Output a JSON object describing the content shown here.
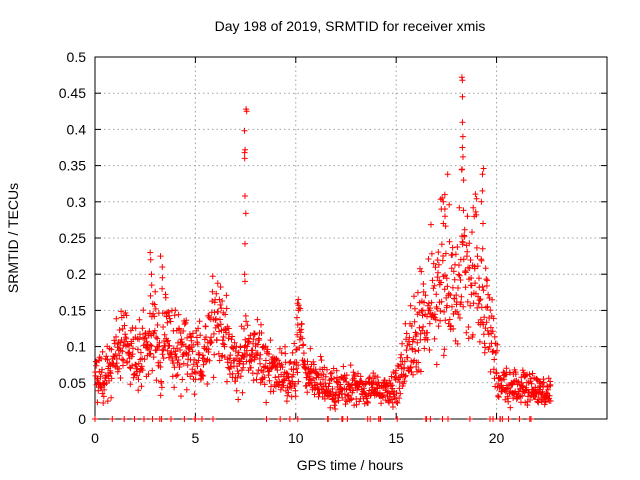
{
  "chart_data": {
    "type": "scatter",
    "title": "Day 198 of 2019, SRMTID for receiver xmis",
    "xlabel": "GPS time / hours",
    "ylabel": "SRMTID / TECUs",
    "xlim": [
      0,
      25.5
    ],
    "ylim": [
      0,
      0.5
    ],
    "grid": true,
    "marker": "+",
    "marker_color": "#ff0000",
    "x_ticks": [
      {
        "value": 0,
        "label": "0"
      },
      {
        "value": 5,
        "label": "5"
      },
      {
        "value": 10,
        "label": "10"
      },
      {
        "value": 15,
        "label": "15"
      },
      {
        "value": 20,
        "label": "20"
      }
    ],
    "y_ticks": [
      {
        "value": 0,
        "label": "0"
      },
      {
        "value": 0.05,
        "label": "0.05"
      },
      {
        "value": 0.1,
        "label": "0.1"
      },
      {
        "value": 0.15,
        "label": "0.15"
      },
      {
        "value": 0.2,
        "label": "0.2"
      },
      {
        "value": 0.25,
        "label": "0.25"
      },
      {
        "value": 0.3,
        "label": "0.3"
      },
      {
        "value": 0.35,
        "label": "0.35"
      },
      {
        "value": 0.4,
        "label": "0.4"
      },
      {
        "value": 0.45,
        "label": "0.45"
      },
      {
        "value": 0.5,
        "label": "0.5"
      }
    ],
    "series": [
      {
        "name": "SRMTID",
        "x_range": [
          0,
          22.7
        ],
        "x": [
          0.0,
          0.5,
          1.0,
          1.5,
          2.0,
          2.5,
          2.8,
          3.0,
          3.3,
          3.5,
          4.0,
          4.5,
          5.0,
          5.5,
          6.0,
          6.3,
          6.8,
          7.2,
          7.5,
          7.8,
          8.0,
          8.5,
          9.0,
          9.5,
          10.0,
          10.2,
          10.5,
          11.0,
          11.5,
          12.0,
          12.5,
          13.0,
          13.5,
          14.0,
          14.5,
          14.8,
          15.0,
          15.3,
          15.5,
          16.0,
          16.5,
          17.0,
          17.5,
          17.8,
          18.0,
          18.3,
          18.6,
          18.8,
          19.0,
          19.3,
          19.6,
          19.8,
          20.0,
          20.3,
          20.6,
          21.0,
          21.5,
          22.0,
          22.7
        ],
        "y": [
          0.055,
          0.06,
          0.085,
          0.1,
          0.085,
          0.09,
          0.12,
          0.11,
          0.085,
          0.13,
          0.09,
          0.085,
          0.075,
          0.085,
          0.125,
          0.13,
          0.075,
          0.065,
          0.1,
          0.08,
          0.085,
          0.07,
          0.065,
          0.06,
          0.06,
          0.12,
          0.06,
          0.055,
          0.045,
          0.04,
          0.042,
          0.045,
          0.04,
          0.04,
          0.04,
          0.035,
          0.05,
          0.06,
          0.08,
          0.11,
          0.14,
          0.19,
          0.2,
          0.18,
          0.16,
          0.23,
          0.17,
          0.2,
          0.19,
          0.16,
          0.13,
          0.09,
          0.06,
          0.05,
          0.04,
          0.042,
          0.04,
          0.038,
          0.035
        ],
        "spikes": [
          {
            "x": 2.8,
            "y": [
              0.23,
              0.22,
              0.2,
              0.185,
              0.17
            ]
          },
          {
            "x": 3.3,
            "y": [
              0.225,
              0.21,
              0.195,
              0.18
            ]
          },
          {
            "x": 7.5,
            "y": [
              0.428,
              0.425,
              0.398,
              0.372,
              0.368,
              0.36,
              0.308,
              0.284,
              0.242,
              0.2,
              0.19
            ]
          },
          {
            "x": 10.1,
            "y": [
              0.165,
              0.16,
              0.15,
              0.14,
              0.13
            ]
          },
          {
            "x": 17.4,
            "y": [
              0.31,
              0.3,
              0.29,
              0.28,
              0.27
            ]
          },
          {
            "x": 18.3,
            "y": [
              0.472,
              0.468,
              0.445,
              0.41,
              0.39,
              0.375,
              0.362,
              0.345,
              0.33
            ]
          },
          {
            "x": 19.3,
            "y": [
              0.346,
              0.338,
              0.315,
              0.3
            ]
          }
        ]
      }
    ]
  }
}
